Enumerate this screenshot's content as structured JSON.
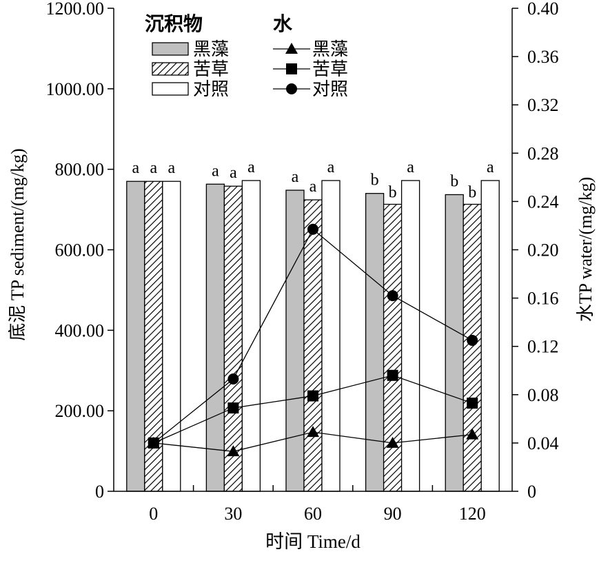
{
  "chart_data": {
    "type": "bar",
    "xlabel": "时间  Time/d",
    "ylabel_left": "底泥 TP  sediment/(mg/kg)",
    "ylabel_right": "水TP water/(mg/kg)",
    "categories": [
      "0",
      "30",
      "60",
      "90",
      "120"
    ],
    "ylim_left": [
      0,
      1200
    ],
    "ylim_right": [
      0,
      0.4
    ],
    "yticks_left": [
      "0",
      "200.00",
      "400.00",
      "600.00",
      "800.00",
      "1000.00",
      "1200.00"
    ],
    "yticks_right": [
      "0",
      "0.04",
      "0.08",
      "0.12",
      "0.16",
      "0.20",
      "0.24",
      "0.28",
      "0.32",
      "0.36",
      "0.40"
    ],
    "legend": {
      "sediment_title": "沉积物",
      "water_title": "水"
    },
    "bar_series": [
      {
        "name": "黑藻",
        "pattern": "gray",
        "color": "#c0c0c0",
        "values": [
          770,
          763,
          748,
          740,
          737
        ],
        "letters": [
          "a",
          "a",
          "a",
          "b",
          "b"
        ]
      },
      {
        "name": "苦草",
        "pattern": "hatch",
        "color": "#ffffff",
        "values": [
          770,
          758,
          724,
          713,
          713
        ],
        "letters": [
          "a",
          "a",
          "a",
          "b",
          "b"
        ]
      },
      {
        "name": "对照",
        "pattern": "white",
        "color": "#ffffff",
        "values": [
          770,
          772,
          772,
          772,
          772
        ],
        "letters": [
          "a",
          "a",
          "a",
          "a",
          "a"
        ]
      }
    ],
    "line_series": [
      {
        "name": "黑藻",
        "marker": "triangle",
        "values": [
          0.04,
          0.033,
          0.049,
          0.04,
          0.047
        ]
      },
      {
        "name": "苦草",
        "marker": "square",
        "values": [
          0.04,
          0.069,
          0.079,
          0.096,
          0.073
        ]
      },
      {
        "name": "对照",
        "marker": "circle",
        "values": [
          0.04,
          0.093,
          0.217,
          0.162,
          0.125
        ]
      }
    ]
  }
}
